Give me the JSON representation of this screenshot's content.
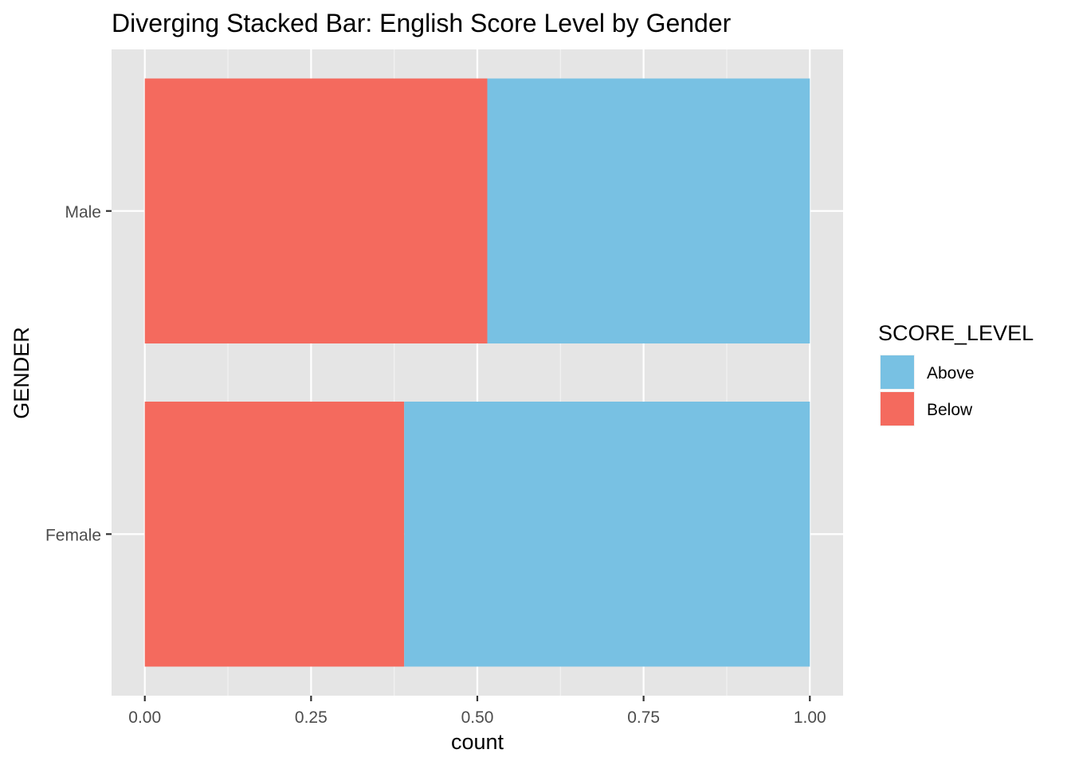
{
  "chart_data": {
    "type": "bar",
    "orientation": "horizontal",
    "stacked": true,
    "title": "Diverging Stacked Bar: English Score Level by Gender",
    "xlabel": "count",
    "ylabel": "GENDER",
    "xlim": [
      -0.05,
      1.05
    ],
    "xticks": [
      0,
      0.25,
      0.5,
      0.75,
      1.0
    ],
    "xtick_labels": [
      "0.00",
      "0.25",
      "0.50",
      "0.75",
      "1.00"
    ],
    "categories": [
      "Male",
      "Female"
    ],
    "series": [
      {
        "name": "Below",
        "color": "#F46A5E",
        "values": [
          0.515,
          0.39
        ]
      },
      {
        "name": "Above",
        "color": "#78C1E3",
        "values": [
          0.485,
          0.61
        ]
      }
    ],
    "legend": {
      "title": "SCORE_LEVEL",
      "position": "right",
      "entries": [
        {
          "name": "Above",
          "color": "#78C1E3"
        },
        {
          "name": "Below",
          "color": "#F46A5E"
        }
      ]
    },
    "grid": true,
    "panel_background": "#E5E5E5"
  }
}
